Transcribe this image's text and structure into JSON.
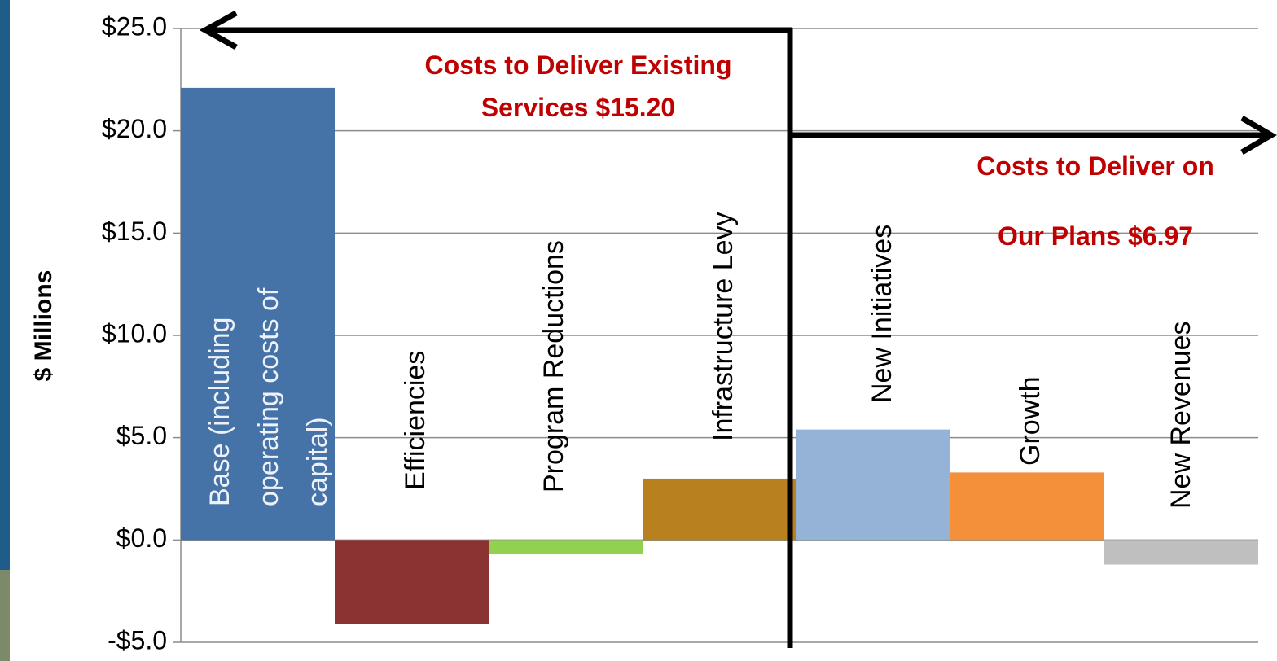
{
  "chart_data": {
    "type": "bar",
    "y_label": "$ Millions",
    "categories": [
      "Base (including operating costs of capital)",
      "Efficiencies",
      "Program Reductions",
      "Infrastructure Levy",
      "New Initiatives",
      "Growth",
      "New Revenues"
    ],
    "values": [
      22.1,
      -4.1,
      -0.7,
      3.0,
      5.4,
      3.3,
      -1.2
    ],
    "colors": [
      "#4573a7",
      "#8b3232",
      "#92d050",
      "#b8801e",
      "#95b3d7",
      "#f48f3a",
      "#bfbfbf"
    ],
    "ylim": [
      -5,
      25
    ],
    "yticks": [
      {
        "value": -5,
        "label": "-$5.0"
      },
      {
        "value": 0,
        "label": "$0.0"
      },
      {
        "value": 5,
        "label": "$5.0"
      },
      {
        "value": 10,
        "label": "$10.0"
      },
      {
        "value": 15,
        "label": "$15.0"
      },
      {
        "value": 20,
        "label": "$20.0"
      },
      {
        "value": 25,
        "label": "$25.0"
      }
    ],
    "grid": true,
    "annotations": [
      {
        "lines": [
          "Costs to Deliver Existing",
          "Services  $15.20"
        ]
      },
      {
        "lines": [
          "Costs to Deliver on",
          "Our Plans $6.97"
        ]
      }
    ]
  }
}
